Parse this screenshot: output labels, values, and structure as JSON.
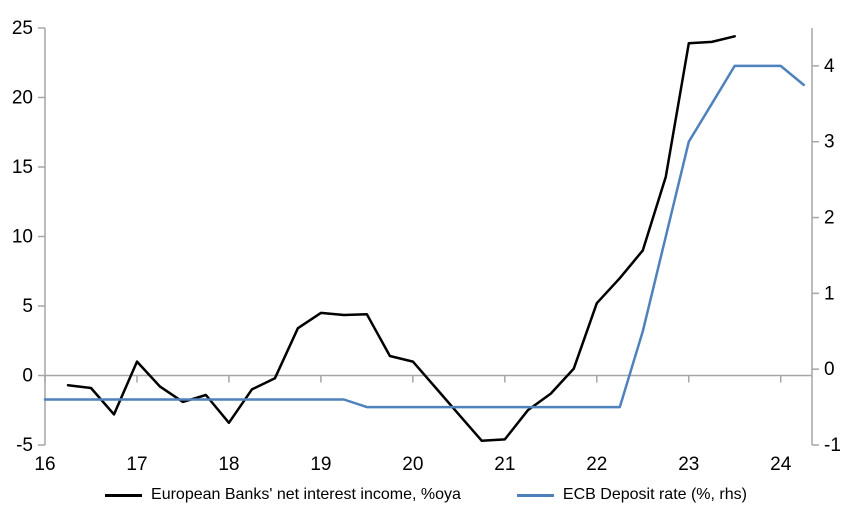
{
  "chart_data": {
    "type": "line",
    "title": "",
    "x_axis": {
      "min": 16,
      "max": 24.34,
      "ticks": [
        16,
        17,
        18,
        19,
        20,
        21,
        22,
        23,
        24
      ],
      "tick_labels": [
        "16",
        "17",
        "18",
        "19",
        "20",
        "21",
        "22",
        "23",
        "24"
      ]
    },
    "left_axis": {
      "min": -5,
      "max": 25,
      "ticks": [
        -5,
        0,
        5,
        10,
        15,
        20,
        25
      ],
      "tick_labels": [
        "-5",
        "0",
        "5",
        "10",
        "15",
        "20",
        "25"
      ]
    },
    "right_axis": {
      "min": -1,
      "max": 4.5,
      "ticks": [
        -1,
        0,
        1,
        2,
        3,
        4
      ],
      "tick_labels": [
        "-1",
        "0",
        "1",
        "2",
        "3",
        "4"
      ]
    },
    "grid": "zero-line-only",
    "legend_position": "bottom-center",
    "axis_color": "#A6A6A6",
    "series": [
      {
        "name": "European Banks' net interest income, %oya",
        "axis": "left",
        "color": "#000000",
        "x": [
          16.25,
          16.5,
          16.75,
          17.0,
          17.25,
          17.5,
          17.75,
          18.0,
          18.25,
          18.5,
          18.75,
          19.0,
          19.25,
          19.5,
          19.75,
          20.0,
          20.25,
          20.5,
          20.75,
          21.0,
          21.25,
          21.5,
          21.75,
          22.0,
          22.25,
          22.5,
          22.75,
          23.0,
          23.25,
          23.5
        ],
        "values": [
          -0.7,
          -0.9,
          -2.8,
          1.0,
          -0.8,
          -1.9,
          -1.4,
          -3.4,
          -1.0,
          -0.2,
          3.4,
          4.5,
          4.35,
          4.4,
          1.4,
          1.0,
          -0.9,
          -2.8,
          -4.7,
          -4.6,
          -2.5,
          -1.3,
          0.5,
          5.2,
          7.0,
          9.0,
          14.3,
          23.9,
          24.0,
          24.4
        ]
      },
      {
        "name": "ECB Deposit rate (%, rhs)",
        "axis": "right",
        "color": "#4F81BD",
        "x": [
          16.0,
          16.25,
          16.5,
          16.75,
          17.0,
          17.25,
          17.5,
          17.75,
          18.0,
          18.25,
          18.5,
          18.75,
          19.0,
          19.25,
          19.5,
          19.75,
          20.0,
          20.25,
          20.5,
          20.75,
          21.0,
          21.25,
          21.5,
          21.75,
          22.0,
          22.25,
          22.5,
          22.75,
          23.0,
          23.25,
          23.5,
          23.75,
          24.0,
          24.25
        ],
        "values": [
          -0.4,
          -0.4,
          -0.4,
          -0.4,
          -0.4,
          -0.4,
          -0.4,
          -0.4,
          -0.4,
          -0.4,
          -0.4,
          -0.4,
          -0.4,
          -0.4,
          -0.5,
          -0.5,
          -0.5,
          -0.5,
          -0.5,
          -0.5,
          -0.5,
          -0.5,
          -0.5,
          -0.5,
          -0.5,
          -0.5,
          0.5,
          1.75,
          3.0,
          3.5,
          4.0,
          4.0,
          4.0,
          3.75
        ]
      }
    ]
  }
}
